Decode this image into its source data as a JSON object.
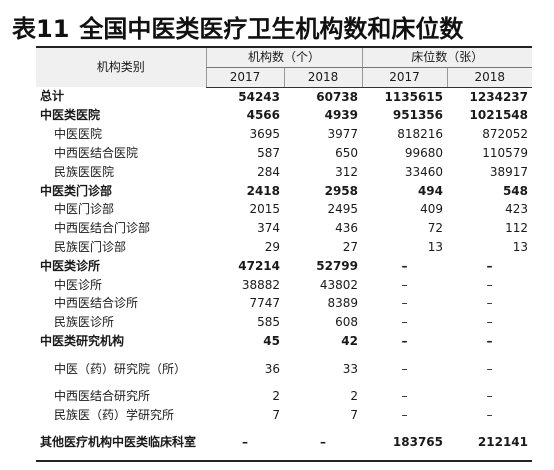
{
  "title": {
    "number": "表11",
    "text": "全国中医类医疗卫生机构数和床位数"
  },
  "header": {
    "row_label": "机构类别",
    "group1": "机构数（个）",
    "group2": "床位数（张）",
    "years": [
      "2017",
      "2018",
      "2017",
      "2018"
    ]
  },
  "rows": [
    {
      "label": "总计",
      "level": "total",
      "v": [
        "54243",
        "60738",
        "1135615",
        "1234237"
      ]
    },
    {
      "label": "中医类医院",
      "level": "cat",
      "v": [
        "4566",
        "4939",
        "951356",
        "1021548"
      ]
    },
    {
      "label": "中医医院",
      "level": "sub",
      "v": [
        "3695",
        "3977",
        "818216",
        "872052"
      ]
    },
    {
      "label": "中西医结合医院",
      "level": "sub",
      "v": [
        "587",
        "650",
        "99680",
        "110579"
      ]
    },
    {
      "label": "民族医医院",
      "level": "sub",
      "v": [
        "284",
        "312",
        "33460",
        "38917"
      ]
    },
    {
      "label": "中医类门诊部",
      "level": "cat",
      "v": [
        "2418",
        "2958",
        "494",
        "548"
      ]
    },
    {
      "label": "中医门诊部",
      "level": "sub",
      "v": [
        "2015",
        "2495",
        "409",
        "423"
      ]
    },
    {
      "label": "中西医结合门诊部",
      "level": "sub",
      "v": [
        "374",
        "436",
        "72",
        "112"
      ]
    },
    {
      "label": "民族医门诊部",
      "level": "sub",
      "v": [
        "29",
        "27",
        "13",
        "13"
      ]
    },
    {
      "label": "中医类诊所",
      "level": "cat",
      "v": [
        "47214",
        "52799",
        "–",
        "–"
      ]
    },
    {
      "label": "中医诊所",
      "level": "sub",
      "v": [
        "38882",
        "43802",
        "–",
        "–"
      ]
    },
    {
      "label": "中西医结合诊所",
      "level": "sub",
      "v": [
        "7747",
        "8389",
        "–",
        "–"
      ]
    },
    {
      "label": "民族医诊所",
      "level": "sub",
      "v": [
        "585",
        "608",
        "–",
        "–"
      ]
    },
    {
      "label": "中医类研究机构",
      "level": "cat",
      "v": [
        "45",
        "42",
        "–",
        "–"
      ]
    },
    {
      "label": "中医（药）研究院（所）",
      "level": "sub-wrap",
      "v": [
        "36",
        "33",
        "–",
        "–"
      ]
    },
    {
      "label": "中西医结合研究所",
      "level": "sub",
      "v": [
        "2",
        "2",
        "–",
        "–"
      ]
    },
    {
      "label": "民族医（药）学研究所",
      "level": "sub",
      "v": [
        "7",
        "7",
        "–",
        "–"
      ]
    },
    {
      "label": "其他医疗机构中医类临床科室",
      "level": "cat-wrap",
      "v": [
        "–",
        "–",
        "183765",
        "212141"
      ]
    }
  ]
}
